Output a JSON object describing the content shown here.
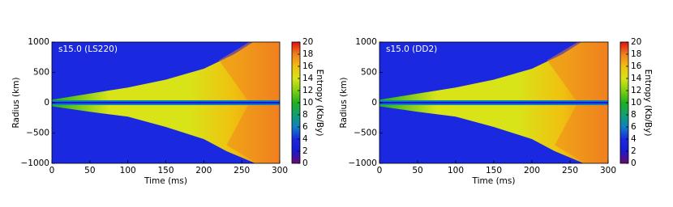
{
  "chart_data": [
    {
      "type": "heatmap",
      "title": "s15.0 (LS220)",
      "xlabel": "Time (ms)",
      "ylabel": "Radius (km)",
      "xlim": [
        0,
        300
      ],
      "xticks": [
        0,
        50,
        100,
        150,
        200,
        250,
        300
      ],
      "ylim": [
        -1000,
        1000
      ],
      "yticks": [
        {
          "value": -1000,
          "label": "−1000"
        },
        {
          "value": -500,
          "label": "−500"
        },
        0,
        500,
        1000
      ],
      "colorbar": {
        "label": "Entropy (Kb/By)",
        "lim": [
          0,
          20
        ],
        "ticks": [
          0,
          2,
          4,
          6,
          8,
          10,
          12,
          14,
          16,
          18,
          20
        ]
      },
      "colormap": [
        "#6a0a6e",
        "#1a1ad0",
        "#1a28e0",
        "#1080c0",
        "#10a070",
        "#20b020",
        "#80d010",
        "#d8e418",
        "#f0c010",
        "#f08020",
        "#e01010"
      ]
    },
    {
      "type": "heatmap",
      "title": "s15.0 (DD2)",
      "xlabel": "Time (ms)",
      "ylabel": "Radius (km)",
      "xlim": [
        0,
        300
      ],
      "xticks": [
        0,
        50,
        100,
        150,
        200,
        250,
        300
      ],
      "ylim": [
        -1000,
        1000
      ],
      "yticks": [
        {
          "value": -1000,
          "label": "−1000"
        },
        {
          "value": -500,
          "label": "−500"
        },
        0,
        500,
        1000
      ],
      "colorbar": {
        "label": "Entropy (Kb/By)",
        "lim": [
          0,
          20
        ],
        "ticks": [
          0,
          2,
          4,
          6,
          8,
          10,
          12,
          14,
          16,
          18,
          20
        ]
      },
      "colormap": [
        "#6a0a6e",
        "#1a1ad0",
        "#1a28e0",
        "#1080c0",
        "#10a070",
        "#20b020",
        "#80d010",
        "#d8e418",
        "#f0c010",
        "#f08020",
        "#e01010"
      ]
    }
  ]
}
